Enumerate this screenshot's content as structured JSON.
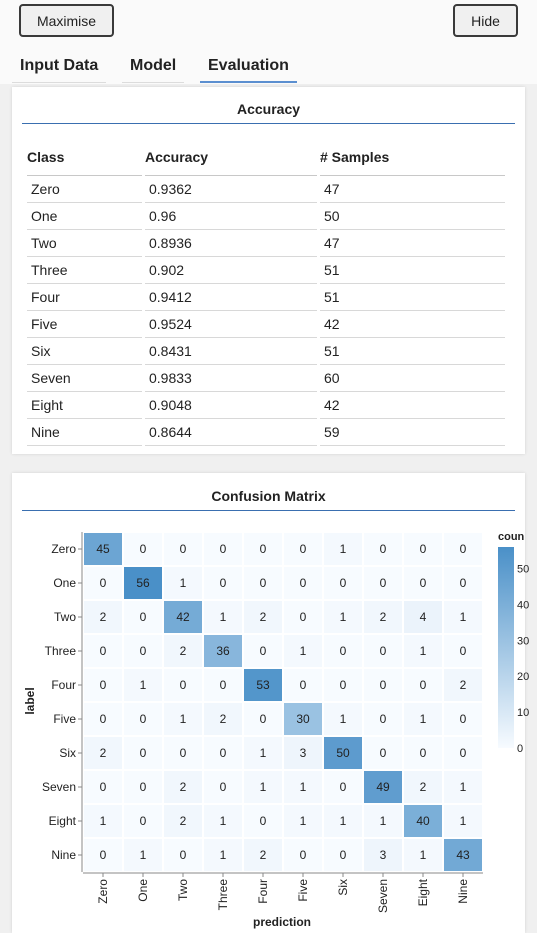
{
  "toolbar": {
    "maximise_label": "Maximise",
    "hide_label": "Hide"
  },
  "tabs": [
    {
      "label": "Input Data"
    },
    {
      "label": "Model"
    },
    {
      "label": "Evaluation"
    }
  ],
  "active_tab": "Evaluation",
  "accuracy": {
    "title": "Accuracy",
    "columns": [
      "Class",
      "Accuracy",
      "# Samples"
    ],
    "rows": [
      [
        "Zero",
        "0.9362",
        "47"
      ],
      [
        "One",
        "0.96",
        "50"
      ],
      [
        "Two",
        "0.8936",
        "47"
      ],
      [
        "Three",
        "0.902",
        "51"
      ],
      [
        "Four",
        "0.9412",
        "51"
      ],
      [
        "Five",
        "0.9524",
        "42"
      ],
      [
        "Six",
        "0.8431",
        "51"
      ],
      [
        "Seven",
        "0.9833",
        "60"
      ],
      [
        "Eight",
        "0.9048",
        "42"
      ],
      [
        "Nine",
        "0.8644",
        "59"
      ]
    ]
  },
  "chart_data": {
    "type": "heatmap",
    "title": "Confusion Matrix",
    "xlabel": "prediction",
    "ylabel": "label",
    "categories": [
      "Zero",
      "One",
      "Two",
      "Three",
      "Four",
      "Five",
      "Six",
      "Seven",
      "Eight",
      "Nine"
    ],
    "matrix": [
      [
        45,
        0,
        0,
        0,
        0,
        0,
        1,
        0,
        0,
        0
      ],
      [
        0,
        56,
        1,
        0,
        0,
        0,
        0,
        0,
        0,
        0
      ],
      [
        2,
        0,
        42,
        1,
        2,
        0,
        1,
        2,
        4,
        1
      ],
      [
        0,
        0,
        2,
        36,
        0,
        1,
        0,
        0,
        1,
        0
      ],
      [
        0,
        1,
        0,
        0,
        53,
        0,
        0,
        0,
        0,
        2
      ],
      [
        0,
        0,
        1,
        2,
        0,
        30,
        1,
        0,
        1,
        0
      ],
      [
        2,
        0,
        0,
        0,
        1,
        3,
        50,
        0,
        0,
        0
      ],
      [
        0,
        0,
        2,
        0,
        1,
        1,
        0,
        49,
        2,
        1
      ],
      [
        1,
        0,
        2,
        1,
        0,
        1,
        1,
        1,
        40,
        1
      ],
      [
        0,
        1,
        0,
        1,
        2,
        0,
        0,
        3,
        1,
        43
      ]
    ],
    "legend": {
      "title": "coun",
      "ticks": [
        "50",
        "40",
        "30",
        "20",
        "10",
        "0"
      ],
      "domain": [
        0,
        56
      ]
    },
    "color_low": "#f7fbff",
    "color_high": "#4a90c8"
  }
}
